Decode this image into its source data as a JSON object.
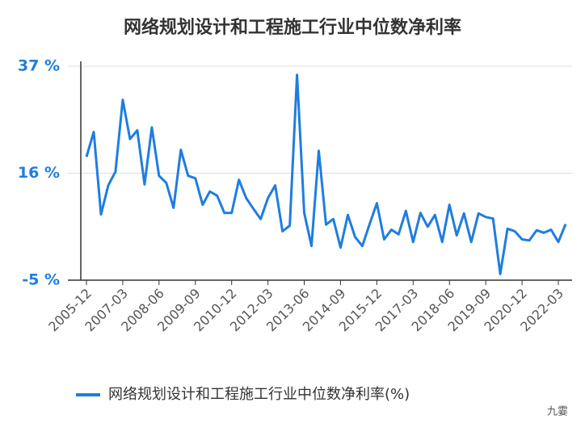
{
  "chart_data": {
    "type": "line",
    "title": "网络规划设计和工程施工行业中位数净利率",
    "categories": [
      "2005-12",
      null,
      null,
      null,
      null,
      "2007-03",
      null,
      null,
      null,
      null,
      "2008-06",
      null,
      null,
      null,
      null,
      "2009-09",
      null,
      null,
      null,
      null,
      "2010-12",
      null,
      null,
      null,
      null,
      "2012-03",
      null,
      null,
      null,
      null,
      "2013-06",
      null,
      null,
      null,
      null,
      "2014-09",
      null,
      null,
      null,
      null,
      "2015-12",
      null,
      null,
      null,
      null,
      "2017-03",
      null,
      null,
      null,
      null,
      "2018-06",
      null,
      null,
      null,
      null,
      "2019-09",
      null,
      null,
      null,
      null,
      "2020-12",
      null,
      null,
      null,
      null,
      "2022-03",
      null
    ],
    "series": [
      {
        "name": "网络规划设计和工程施工行业中位数净利率(%)",
        "color": "#1f7de0",
        "values": [
          19.2,
          24.1,
          7.9,
          13.6,
          16.3,
          30.4,
          22.7,
          24.4,
          13.8,
          25,
          15.5,
          14.1,
          9.2,
          20.6,
          15.5,
          15,
          9.8,
          12.4,
          11.6,
          8.2,
          8.2,
          14.7,
          11.1,
          9,
          7,
          11.1,
          13.6,
          4.6,
          5.7,
          35.3,
          8.2,
          1.7,
          20.4,
          5.9,
          7,
          1.4,
          7.8,
          3.5,
          1.7,
          6,
          10.1,
          3,
          4.9,
          4,
          8.6,
          2.5,
          8.2,
          5.5,
          7.8,
          2.5,
          9.8,
          3.8,
          8.1,
          2.5,
          8.1,
          7.4,
          7.1,
          -3.8,
          5.1,
          4.6,
          3,
          2.8,
          4.8,
          4.3,
          4.9,
          2.5,
          6
        ]
      }
    ],
    "ylim": [
      -5,
      37
    ],
    "yticks": [
      {
        "value": -5,
        "label": "-5 %"
      },
      {
        "value": 16,
        "label": "16 %"
      },
      {
        "value": 37,
        "label": "37 %"
      }
    ],
    "grid": true,
    "legend": "bottom",
    "watermark": "九霎"
  }
}
